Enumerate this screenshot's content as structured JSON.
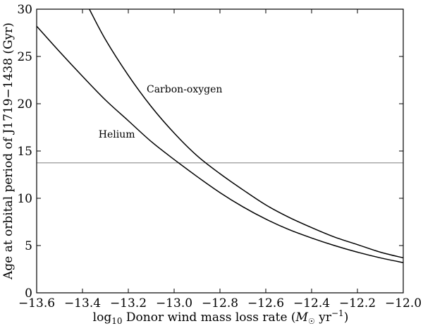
{
  "chart_data": {
    "type": "line",
    "xlabel_parts": {
      "log": "log",
      "sub10": "10",
      "text": " Donor wind mass loss rate (",
      "msun": "M",
      "sun": "☉",
      "yr": " yr",
      "exp": "−1",
      "close": ")"
    },
    "ylabel": "Age at orbital period of J1719−1438 (Gyr)",
    "xlim": [
      -13.6,
      -12.0
    ],
    "ylim": [
      0,
      30
    ],
    "x_ticks": [
      -13.6,
      -13.4,
      -13.2,
      -13.0,
      -12.8,
      -12.6,
      -12.4,
      -12.2,
      -12.0
    ],
    "x_tick_labels": [
      "−13.6",
      "−13.4",
      "−13.2",
      "−13.0",
      "−12.8",
      "−12.6",
      "−12.4",
      "−12.2",
      "−12.0"
    ],
    "y_ticks": [
      0,
      5,
      10,
      15,
      20,
      25,
      30
    ],
    "y_tick_labels": [
      "0",
      "5",
      "10",
      "15",
      "20",
      "25",
      "30"
    ],
    "hline": {
      "y": 13.75,
      "color": "#999999"
    },
    "series": [
      {
        "name": "Helium",
        "color": "#000000",
        "x": [
          -13.6,
          -13.5,
          -13.4,
          -13.3,
          -13.2,
          -13.1,
          -13.0,
          -12.9,
          -12.8,
          -12.7,
          -12.6,
          -12.5,
          -12.4,
          -12.3,
          -12.2,
          -12.1,
          -12.0
        ],
        "y": [
          28.2,
          25.5,
          22.9,
          20.4,
          18.2,
          16.0,
          14.1,
          12.3,
          10.6,
          9.1,
          7.8,
          6.7,
          5.8,
          5.0,
          4.3,
          3.7,
          3.2
        ]
      },
      {
        "name": "Carbon-oxygen",
        "color": "#000000",
        "x": [
          -13.37,
          -13.3,
          -13.2,
          -13.1,
          -13.0,
          -12.9,
          -12.8,
          -12.7,
          -12.6,
          -12.5,
          -12.4,
          -12.3,
          -12.2,
          -12.1,
          -12.0
        ],
        "y": [
          30.0,
          26.8,
          23.0,
          19.7,
          16.9,
          14.5,
          12.6,
          10.9,
          9.3,
          8.0,
          6.9,
          5.9,
          5.1,
          4.3,
          3.7
        ]
      }
    ],
    "annotations": [
      {
        "text": "Carbon-oxygen",
        "x": -13.12,
        "y": 21.2
      },
      {
        "text": "Helium",
        "x": -13.33,
        "y": 16.4
      }
    ]
  }
}
